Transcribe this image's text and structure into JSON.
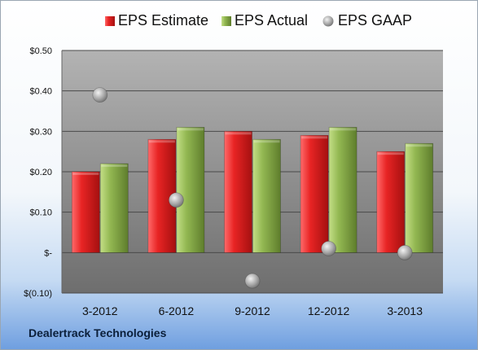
{
  "company": "Dealertrack Technologies",
  "chart_data": {
    "type": "bar",
    "categories": [
      "3-2012",
      "6-2012",
      "9-2012",
      "12-2012",
      "3-2013"
    ],
    "series": [
      {
        "name": "EPS Estimate",
        "kind": "bar",
        "color": "#d42020",
        "values": [
          0.2,
          0.28,
          0.3,
          0.29,
          0.25
        ]
      },
      {
        "name": "EPS Actual",
        "kind": "bar",
        "color": "#8cb04a",
        "values": [
          0.22,
          0.31,
          0.28,
          0.31,
          0.27
        ]
      },
      {
        "name": "EPS GAAP",
        "kind": "scatter",
        "color": "#a8a8a8",
        "values": [
          0.39,
          0.13,
          -0.07,
          0.01,
          0.0
        ]
      }
    ],
    "y_ticks": [
      {
        "value": 0.5,
        "label": "$0.50"
      },
      {
        "value": 0.4,
        "label": "$0.40"
      },
      {
        "value": 0.3,
        "label": "$0.30"
      },
      {
        "value": 0.2,
        "label": "$0.20"
      },
      {
        "value": 0.1,
        "label": "$0.10"
      },
      {
        "value": 0.0,
        "label": "$-"
      },
      {
        "value": -0.1,
        "label": "$(0.10)"
      }
    ],
    "ylim": [
      -0.1,
      0.5
    ],
    "grid": true,
    "legend_position": "top"
  }
}
